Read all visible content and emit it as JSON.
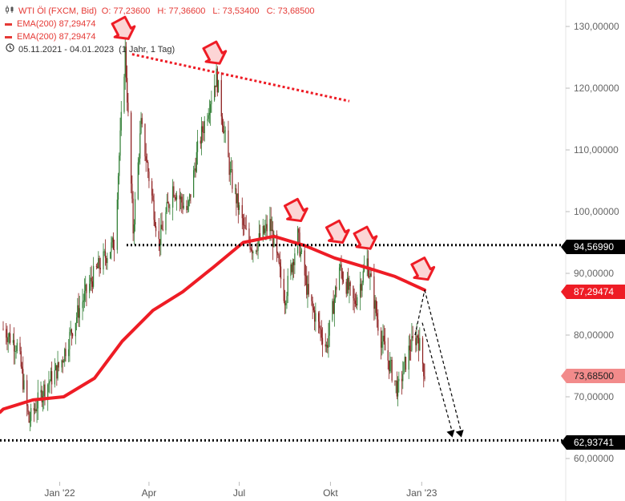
{
  "header": {
    "title": "WTI Öl (FXCM, Bid)",
    "open": "O: 77,23600",
    "high": "H: 77,36600",
    "low": "L: 73,53400",
    "close": "C: 73,68500",
    "ema_label_1": "EMA(200)  87,29474",
    "ema_label_2": "EMA(200)  87,29474",
    "date_range": "05.11.2021 - 04.01.2023",
    "period": "(1 Jahr, 1 Tag)",
    "icons": [
      "candlestick-icon",
      "clock-icon"
    ]
  },
  "price_tags": {
    "resistance": "94,56990",
    "ema": "87,29474",
    "last": "73,68500",
    "target": "62,93741"
  },
  "colors": {
    "candles": "#2e7d32",
    "ema": "#ee1c25",
    "trendline": "#ee1c25",
    "arrow_fill": "#fcd5d5",
    "arrow_stroke": "#ee1c25",
    "level": "#000000"
  },
  "chart_data": {
    "type": "line",
    "title": "WTI Öl (FXCM, Bid)",
    "ylim": [
      55,
      135
    ],
    "y_ticks": [
      60,
      70,
      80,
      90,
      100,
      110,
      120,
      130
    ],
    "y_tick_labels": [
      "60,00000",
      "70,00000",
      "80,00000",
      "90,00000",
      "100,00000",
      "110,00000",
      "120,00000",
      "130,00000"
    ],
    "x_ticks": [
      "Jan '22",
      "Apr",
      "Jul",
      "Okt",
      "Jan '23"
    ],
    "price_series": [
      {
        "date": "2021-11-05",
        "value": 81
      },
      {
        "date": "2021-11-20",
        "value": 78
      },
      {
        "date": "2021-12-01",
        "value": 66
      },
      {
        "date": "2021-12-15",
        "value": 71
      },
      {
        "date": "2022-01-01",
        "value": 75
      },
      {
        "date": "2022-01-20",
        "value": 84
      },
      {
        "date": "2022-02-05",
        "value": 90
      },
      {
        "date": "2022-02-25",
        "value": 95
      },
      {
        "date": "2022-03-08",
        "value": 126
      },
      {
        "date": "2022-03-16",
        "value": 97
      },
      {
        "date": "2022-03-24",
        "value": 114
      },
      {
        "date": "2022-04-11",
        "value": 95
      },
      {
        "date": "2022-04-25",
        "value": 104
      },
      {
        "date": "2022-05-10",
        "value": 100
      },
      {
        "date": "2022-05-20",
        "value": 110
      },
      {
        "date": "2022-06-08",
        "value": 122
      },
      {
        "date": "2022-06-22",
        "value": 106
      },
      {
        "date": "2022-07-06",
        "value": 97
      },
      {
        "date": "2022-07-15",
        "value": 94
      },
      {
        "date": "2022-08-01",
        "value": 98
      },
      {
        "date": "2022-08-16",
        "value": 86
      },
      {
        "date": "2022-08-29",
        "value": 96
      },
      {
        "date": "2022-09-09",
        "value": 86
      },
      {
        "date": "2022-09-27",
        "value": 78
      },
      {
        "date": "2022-10-10",
        "value": 91
      },
      {
        "date": "2022-10-25",
        "value": 85
      },
      {
        "date": "2022-11-07",
        "value": 92
      },
      {
        "date": "2022-11-20",
        "value": 80
      },
      {
        "date": "2022-12-08",
        "value": 71
      },
      {
        "date": "2022-12-20",
        "value": 78
      },
      {
        "date": "2022-12-28",
        "value": 80
      },
      {
        "date": "2023-01-04",
        "value": 73.685
      }
    ],
    "ema_series": [
      {
        "date": "2021-11-05",
        "value": 68
      },
      {
        "date": "2021-12-05",
        "value": 69.5
      },
      {
        "date": "2022-01-05",
        "value": 70
      },
      {
        "date": "2022-02-05",
        "value": 73
      },
      {
        "date": "2022-03-05",
        "value": 79
      },
      {
        "date": "2022-04-05",
        "value": 84
      },
      {
        "date": "2022-05-05",
        "value": 87
      },
      {
        "date": "2022-06-05",
        "value": 91
      },
      {
        "date": "2022-07-05",
        "value": 95
      },
      {
        "date": "2022-08-05",
        "value": 96
      },
      {
        "date": "2022-09-05",
        "value": 94.5
      },
      {
        "date": "2022-10-05",
        "value": 92.5
      },
      {
        "date": "2022-11-05",
        "value": 91
      },
      {
        "date": "2022-12-05",
        "value": 89.5
      },
      {
        "date": "2023-01-04",
        "value": 87.29474
      }
    ],
    "levels": [
      {
        "value": 94.5699,
        "style": "dotted"
      },
      {
        "value": 62.93741,
        "style": "dotted"
      }
    ],
    "trendline": {
      "from": {
        "date": "2022-03-15",
        "value": 125.5
      },
      "to": {
        "date": "2022-10-20",
        "value": 117.9
      }
    },
    "annotation_arrows": [
      {
        "date": "2022-03-08",
        "value": 128
      },
      {
        "date": "2022-06-08",
        "value": 124
      },
      {
        "date": "2022-08-29",
        "value": 98.5
      },
      {
        "date": "2022-10-10",
        "value": 95
      },
      {
        "date": "2022-11-07",
        "value": 94
      },
      {
        "date": "2023-01-04",
        "value": 89
      }
    ],
    "projection": {
      "from": {
        "date": "2023-01-04",
        "value": 87.3
      },
      "targets": [
        {
          "date": "2023-02-01",
          "value": 62.9
        },
        {
          "date": "2023-02-10",
          "value": 62.9
        }
      ]
    }
  }
}
